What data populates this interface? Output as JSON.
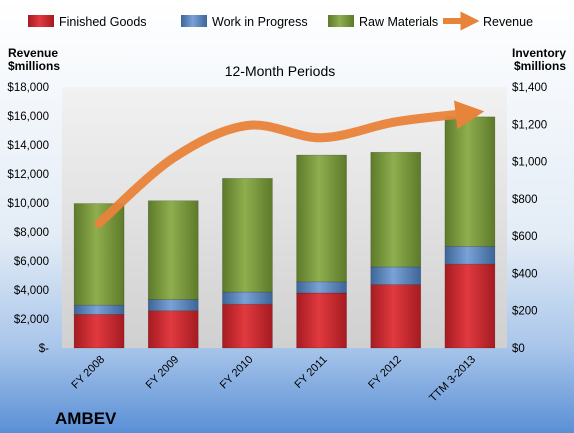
{
  "chart_data": {
    "type": "bar",
    "subtitle": "12-Month Periods",
    "company": "AMBEV",
    "y_left_label_lines": [
      "Revenue",
      "$millions"
    ],
    "y_right_label_lines": [
      "Inventory",
      "$millions"
    ],
    "categories": [
      "FY 2008",
      "FY 2009",
      "FY 2010",
      "FY 2011",
      "FY 2012",
      "TTM 3-2013"
    ],
    "stacked": true,
    "series": [
      {
        "name": "Finished Goods",
        "axis": "right",
        "color": "#c9262c",
        "values": [
          180,
          200,
          235,
          295,
          340,
          450
        ]
      },
      {
        "name": "Work in Progress",
        "axis": "right",
        "color": "#4f81bd",
        "values": [
          50,
          60,
          65,
          60,
          95,
          95
        ]
      },
      {
        "name": "Raw Materials",
        "axis": "right",
        "color": "#77933c",
        "values": [
          545,
          530,
          610,
          680,
          615,
          695
        ]
      },
      {
        "name": "Revenue",
        "axis": "left",
        "type": "line",
        "color": "#e8833a",
        "values": [
          8600,
          13100,
          15350,
          14500,
          15600,
          16200
        ]
      }
    ],
    "y_left": {
      "range": [
        0,
        18000
      ],
      "ticks": [
        "$-",
        "$2,000",
        "$4,000",
        "$6,000",
        "$8,000",
        "$10,000",
        "$12,000",
        "$14,000",
        "$16,000",
        "$18,000"
      ]
    },
    "y_right": {
      "range": [
        0,
        1400
      ],
      "ticks": [
        "$0",
        "$200",
        "$400",
        "$600",
        "$800",
        "$1,000",
        "$1,200",
        "$1,400"
      ]
    },
    "legend_position": "top",
    "grid": false
  }
}
